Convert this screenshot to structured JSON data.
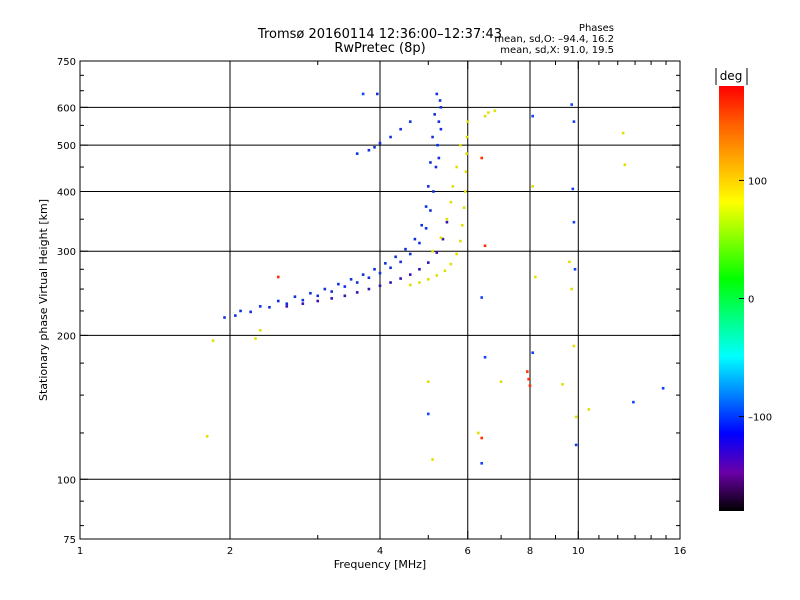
{
  "title_line1": "Tromsø 20160114 12:36:00–12:37:43",
  "title_line2": "RwPretec (8p)",
  "phases": {
    "heading": "Phases",
    "line_o": "mean, sd,O: –94.4, 16.2",
    "line_x": "mean, sd,X:  91.0, 19.5"
  },
  "colorbar": {
    "label": "deg",
    "ticks": [
      {
        "value": 100,
        "label": "100"
      },
      {
        "value": 0,
        "label": "0"
      },
      {
        "value": -100,
        "label": "–100"
      }
    ],
    "range": [
      -180,
      180
    ],
    "colors": [
      "#000000",
      "#6a00a8",
      "#0000ff",
      "#0080ff",
      "#00ffff",
      "#00ff80",
      "#00ff00",
      "#80ff00",
      "#ffff00",
      "#ffb000",
      "#ff6000",
      "#ff0000"
    ]
  },
  "chart_data": {
    "type": "scatter",
    "xlabel": "Frequency [MHz]",
    "ylabel": "Stationary phase Virtual Height [km]",
    "x_scale": "log",
    "y_scale": "log",
    "xlim": [
      1,
      16
    ],
    "ylim": [
      75,
      750
    ],
    "x_ticks": [
      {
        "value": 1,
        "label": "1"
      },
      {
        "value": 2,
        "label": "2"
      },
      {
        "value": 4,
        "label": "4"
      },
      {
        "value": 6,
        "label": "6"
      },
      {
        "value": 8,
        "label": "8"
      },
      {
        "value": 10,
        "label": "10"
      },
      {
        "value": 16,
        "label": "16"
      }
    ],
    "y_ticks": [
      {
        "value": 75,
        "label": "75"
      },
      {
        "value": 100,
        "label": "100"
      },
      {
        "value": 200,
        "label": "200"
      },
      {
        "value": 300,
        "label": "300"
      },
      {
        "value": 400,
        "label": "400"
      },
      {
        "value": 500,
        "label": "500"
      },
      {
        "value": 600,
        "label": "600"
      },
      {
        "value": 750,
        "label": "750"
      }
    ],
    "grid_x": [
      2,
      4,
      6,
      8,
      10
    ],
    "grid_y": [
      100,
      200,
      300,
      400,
      500,
      600
    ],
    "series": [
      {
        "trace": "O",
        "color": "#1030e0",
        "points": [
          [
            1.95,
            218
          ],
          [
            2.05,
            220
          ],
          [
            2.2,
            224
          ],
          [
            2.4,
            229
          ],
          [
            2.6,
            233
          ],
          [
            2.8,
            237
          ],
          [
            3.0,
            242
          ],
          [
            3.2,
            247
          ],
          [
            3.4,
            253
          ],
          [
            3.6,
            258
          ],
          [
            3.8,
            264
          ],
          [
            4.0,
            270
          ],
          [
            4.2,
            277
          ],
          [
            4.4,
            285
          ],
          [
            4.6,
            296
          ],
          [
            4.8,
            312
          ],
          [
            4.95,
            335
          ],
          [
            5.05,
            365
          ],
          [
            5.12,
            400
          ],
          [
            5.18,
            450
          ],
          [
            5.22,
            500
          ],
          [
            5.25,
            560
          ],
          [
            5.28,
            620
          ],
          [
            2.1,
            225
          ],
          [
            2.3,
            230
          ],
          [
            2.5,
            236
          ],
          [
            2.7,
            241
          ],
          [
            2.9,
            245
          ],
          [
            3.1,
            250
          ],
          [
            3.3,
            256
          ],
          [
            3.5,
            262
          ],
          [
            3.7,
            268
          ],
          [
            3.9,
            275
          ],
          [
            4.1,
            283
          ],
          [
            4.3,
            292
          ],
          [
            4.5,
            303
          ],
          [
            4.7,
            318
          ],
          [
            4.85,
            340
          ],
          [
            4.95,
            372
          ],
          [
            5.0,
            410
          ],
          [
            5.05,
            460
          ],
          [
            5.1,
            520
          ],
          [
            5.15,
            580
          ],
          [
            5.2,
            640
          ],
          [
            3.6,
            480
          ],
          [
            3.8,
            488
          ],
          [
            3.9,
            495
          ],
          [
            4.0,
            505
          ],
          [
            4.2,
            520
          ],
          [
            4.4,
            540
          ],
          [
            4.6,
            560
          ],
          [
            3.95,
            640
          ],
          [
            5.3,
            600
          ],
          [
            5.3,
            540
          ],
          [
            5.25,
            470
          ]
        ]
      },
      {
        "trace": "O-lower",
        "color": "#3a10b0",
        "points": [
          [
            2.6,
            230
          ],
          [
            2.8,
            233
          ],
          [
            3.0,
            236
          ],
          [
            3.2,
            239
          ],
          [
            3.4,
            242
          ],
          [
            3.6,
            246
          ],
          [
            3.8,
            250
          ],
          [
            4.0,
            254
          ],
          [
            4.2,
            258
          ],
          [
            4.4,
            263
          ],
          [
            4.6,
            268
          ],
          [
            4.8,
            275
          ],
          [
            5.0,
            284
          ],
          [
            5.2,
            298
          ],
          [
            5.35,
            318
          ],
          [
            5.45,
            345
          ]
        ]
      },
      {
        "trace": "X",
        "color": "#e0e000",
        "points": [
          [
            4.6,
            255
          ],
          [
            4.8,
            258
          ],
          [
            5.0,
            262
          ],
          [
            5.2,
            267
          ],
          [
            5.4,
            273
          ],
          [
            5.55,
            282
          ],
          [
            5.7,
            296
          ],
          [
            5.8,
            315
          ],
          [
            5.85,
            340
          ],
          [
            5.9,
            370
          ],
          [
            5.93,
            400
          ],
          [
            5.95,
            440
          ],
          [
            5.97,
            480
          ],
          [
            5.98,
            520
          ],
          [
            6.0,
            560
          ],
          [
            5.1,
            300
          ],
          [
            5.3,
            320
          ],
          [
            5.45,
            350
          ],
          [
            5.55,
            380
          ],
          [
            5.6,
            410
          ],
          [
            5.7,
            450
          ],
          [
            5.8,
            500
          ],
          [
            1.8,
            123
          ],
          [
            1.85,
            195
          ],
          [
            2.25,
            197
          ],
          [
            2.3,
            205
          ],
          [
            5.0,
            160
          ],
          [
            5.1,
            110
          ],
          [
            6.3,
            125
          ],
          [
            7.0,
            160
          ],
          [
            8.2,
            265
          ],
          [
            9.3,
            158
          ],
          [
            9.6,
            285
          ],
          [
            9.7,
            250
          ],
          [
            9.8,
            190
          ],
          [
            9.9,
            135
          ],
          [
            10.5,
            140
          ],
          [
            12.3,
            530
          ],
          [
            12.4,
            455
          ],
          [
            6.5,
            575
          ],
          [
            6.6,
            585
          ],
          [
            6.8,
            590
          ],
          [
            8.1,
            410
          ]
        ]
      },
      {
        "trace": "outliers",
        "color": "#ff3000",
        "points": [
          [
            2.5,
            265
          ],
          [
            6.4,
            470
          ],
          [
            6.5,
            308
          ],
          [
            7.9,
            168
          ],
          [
            7.95,
            162
          ],
          [
            8.0,
            157
          ],
          [
            6.4,
            122
          ]
        ]
      },
      {
        "trace": "scattered-blue",
        "color": "#1040ff",
        "points": [
          [
            3.7,
            640
          ],
          [
            6.5,
            180
          ],
          [
            6.4,
            108
          ],
          [
            8.1,
            575
          ],
          [
            9.7,
            608
          ],
          [
            9.8,
            560
          ],
          [
            9.75,
            405
          ],
          [
            9.8,
            345
          ],
          [
            9.85,
            275
          ],
          [
            9.9,
            118
          ],
          [
            14.8,
            155
          ],
          [
            12.9,
            145
          ],
          [
            5.0,
            137
          ],
          [
            6.4,
            240
          ],
          [
            8.1,
            184
          ]
        ]
      }
    ]
  }
}
